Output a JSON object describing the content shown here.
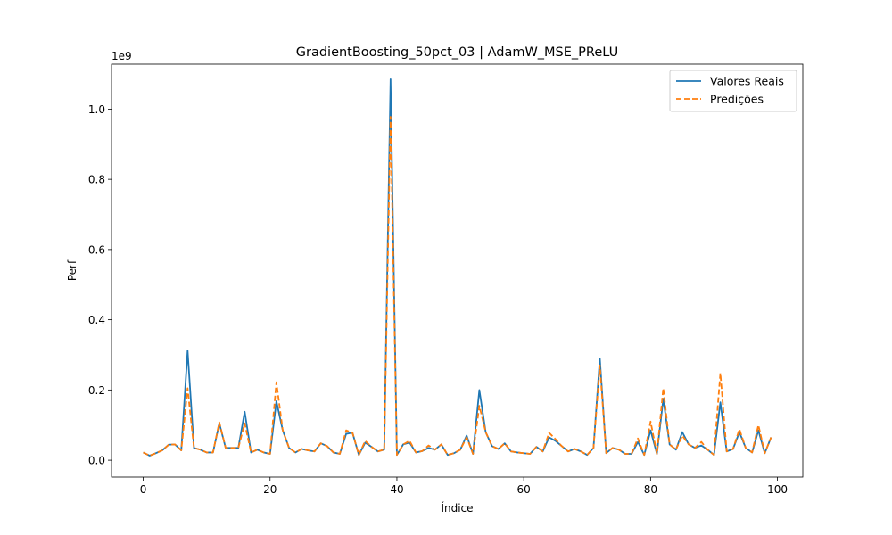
{
  "chart_data": {
    "type": "line",
    "title": "GradientBoosting_50pct_03 | AdamW_MSE_PReLU",
    "xlabel": "Índice",
    "ylabel": "Perf",
    "offset_label": "1e9",
    "xlim": [
      -5,
      104
    ],
    "ylim": [
      -0.048,
      1.128
    ],
    "x_ticks": [
      0,
      20,
      40,
      60,
      80,
      100
    ],
    "x_tick_labels": [
      "0",
      "20",
      "40",
      "60",
      "80",
      "100"
    ],
    "y_ticks": [
      0.0,
      0.2,
      0.4,
      0.6,
      0.8,
      1.0
    ],
    "y_tick_labels": [
      "0.0",
      "0.2",
      "0.4",
      "0.6",
      "0.8",
      "1.0"
    ],
    "grid": false,
    "legend_position": "top-right",
    "x": [
      0,
      1,
      2,
      3,
      4,
      5,
      6,
      7,
      8,
      9,
      10,
      11,
      12,
      13,
      14,
      15,
      16,
      17,
      18,
      19,
      20,
      21,
      22,
      23,
      24,
      25,
      26,
      27,
      28,
      29,
      30,
      31,
      32,
      33,
      34,
      35,
      36,
      37,
      38,
      39,
      40,
      41,
      42,
      43,
      44,
      45,
      46,
      47,
      48,
      49,
      50,
      51,
      52,
      53,
      54,
      55,
      56,
      57,
      58,
      59,
      60,
      61,
      62,
      63,
      64,
      65,
      66,
      67,
      68,
      69,
      70,
      71,
      72,
      73,
      74,
      75,
      76,
      77,
      78,
      79,
      80,
      81,
      82,
      83,
      84,
      85,
      86,
      87,
      88,
      89,
      90,
      91,
      92,
      93,
      94,
      95,
      96,
      97,
      98,
      99
    ],
    "series": [
      {
        "name": "Valores Reais",
        "color": "#1f77b4",
        "style": "solid",
        "values": [
          0.022,
          0.013,
          0.02,
          0.028,
          0.044,
          0.045,
          0.028,
          0.312,
          0.035,
          0.03,
          0.022,
          0.022,
          0.105,
          0.035,
          0.035,
          0.035,
          0.138,
          0.022,
          0.03,
          0.022,
          0.018,
          0.168,
          0.085,
          0.035,
          0.022,
          0.032,
          0.028,
          0.025,
          0.048,
          0.04,
          0.022,
          0.018,
          0.075,
          0.078,
          0.015,
          0.05,
          0.038,
          0.025,
          0.03,
          1.085,
          0.015,
          0.045,
          0.05,
          0.022,
          0.026,
          0.035,
          0.03,
          0.045,
          0.015,
          0.02,
          0.03,
          0.07,
          0.018,
          0.2,
          0.08,
          0.04,
          0.032,
          0.048,
          0.025,
          0.022,
          0.02,
          0.018,
          0.038,
          0.025,
          0.065,
          0.055,
          0.04,
          0.025,
          0.032,
          0.025,
          0.015,
          0.035,
          0.29,
          0.02,
          0.035,
          0.03,
          0.018,
          0.018,
          0.052,
          0.015,
          0.085,
          0.018,
          0.175,
          0.045,
          0.03,
          0.08,
          0.045,
          0.035,
          0.042,
          0.03,
          0.015,
          0.165,
          0.025,
          0.032,
          0.08,
          0.035,
          0.022,
          0.085,
          0.02,
          0.065
        ]
      },
      {
        "name": "Predições",
        "color": "#ff7f0e",
        "style": "dashed",
        "values": [
          0.022,
          0.013,
          0.02,
          0.028,
          0.044,
          0.045,
          0.028,
          0.205,
          0.035,
          0.03,
          0.022,
          0.022,
          0.108,
          0.035,
          0.035,
          0.035,
          0.105,
          0.022,
          0.03,
          0.022,
          0.018,
          0.222,
          0.085,
          0.035,
          0.022,
          0.032,
          0.028,
          0.025,
          0.048,
          0.04,
          0.022,
          0.018,
          0.085,
          0.078,
          0.015,
          0.055,
          0.038,
          0.025,
          0.03,
          0.978,
          0.015,
          0.045,
          0.055,
          0.022,
          0.026,
          0.042,
          0.03,
          0.045,
          0.015,
          0.02,
          0.03,
          0.065,
          0.018,
          0.155,
          0.08,
          0.04,
          0.032,
          0.048,
          0.025,
          0.022,
          0.02,
          0.018,
          0.038,
          0.025,
          0.078,
          0.06,
          0.04,
          0.025,
          0.032,
          0.025,
          0.015,
          0.035,
          0.27,
          0.02,
          0.035,
          0.03,
          0.018,
          0.018,
          0.062,
          0.015,
          0.11,
          0.018,
          0.205,
          0.045,
          0.03,
          0.07,
          0.045,
          0.035,
          0.052,
          0.03,
          0.015,
          0.248,
          0.025,
          0.032,
          0.088,
          0.035,
          0.022,
          0.1,
          0.02,
          0.065
        ]
      }
    ]
  }
}
